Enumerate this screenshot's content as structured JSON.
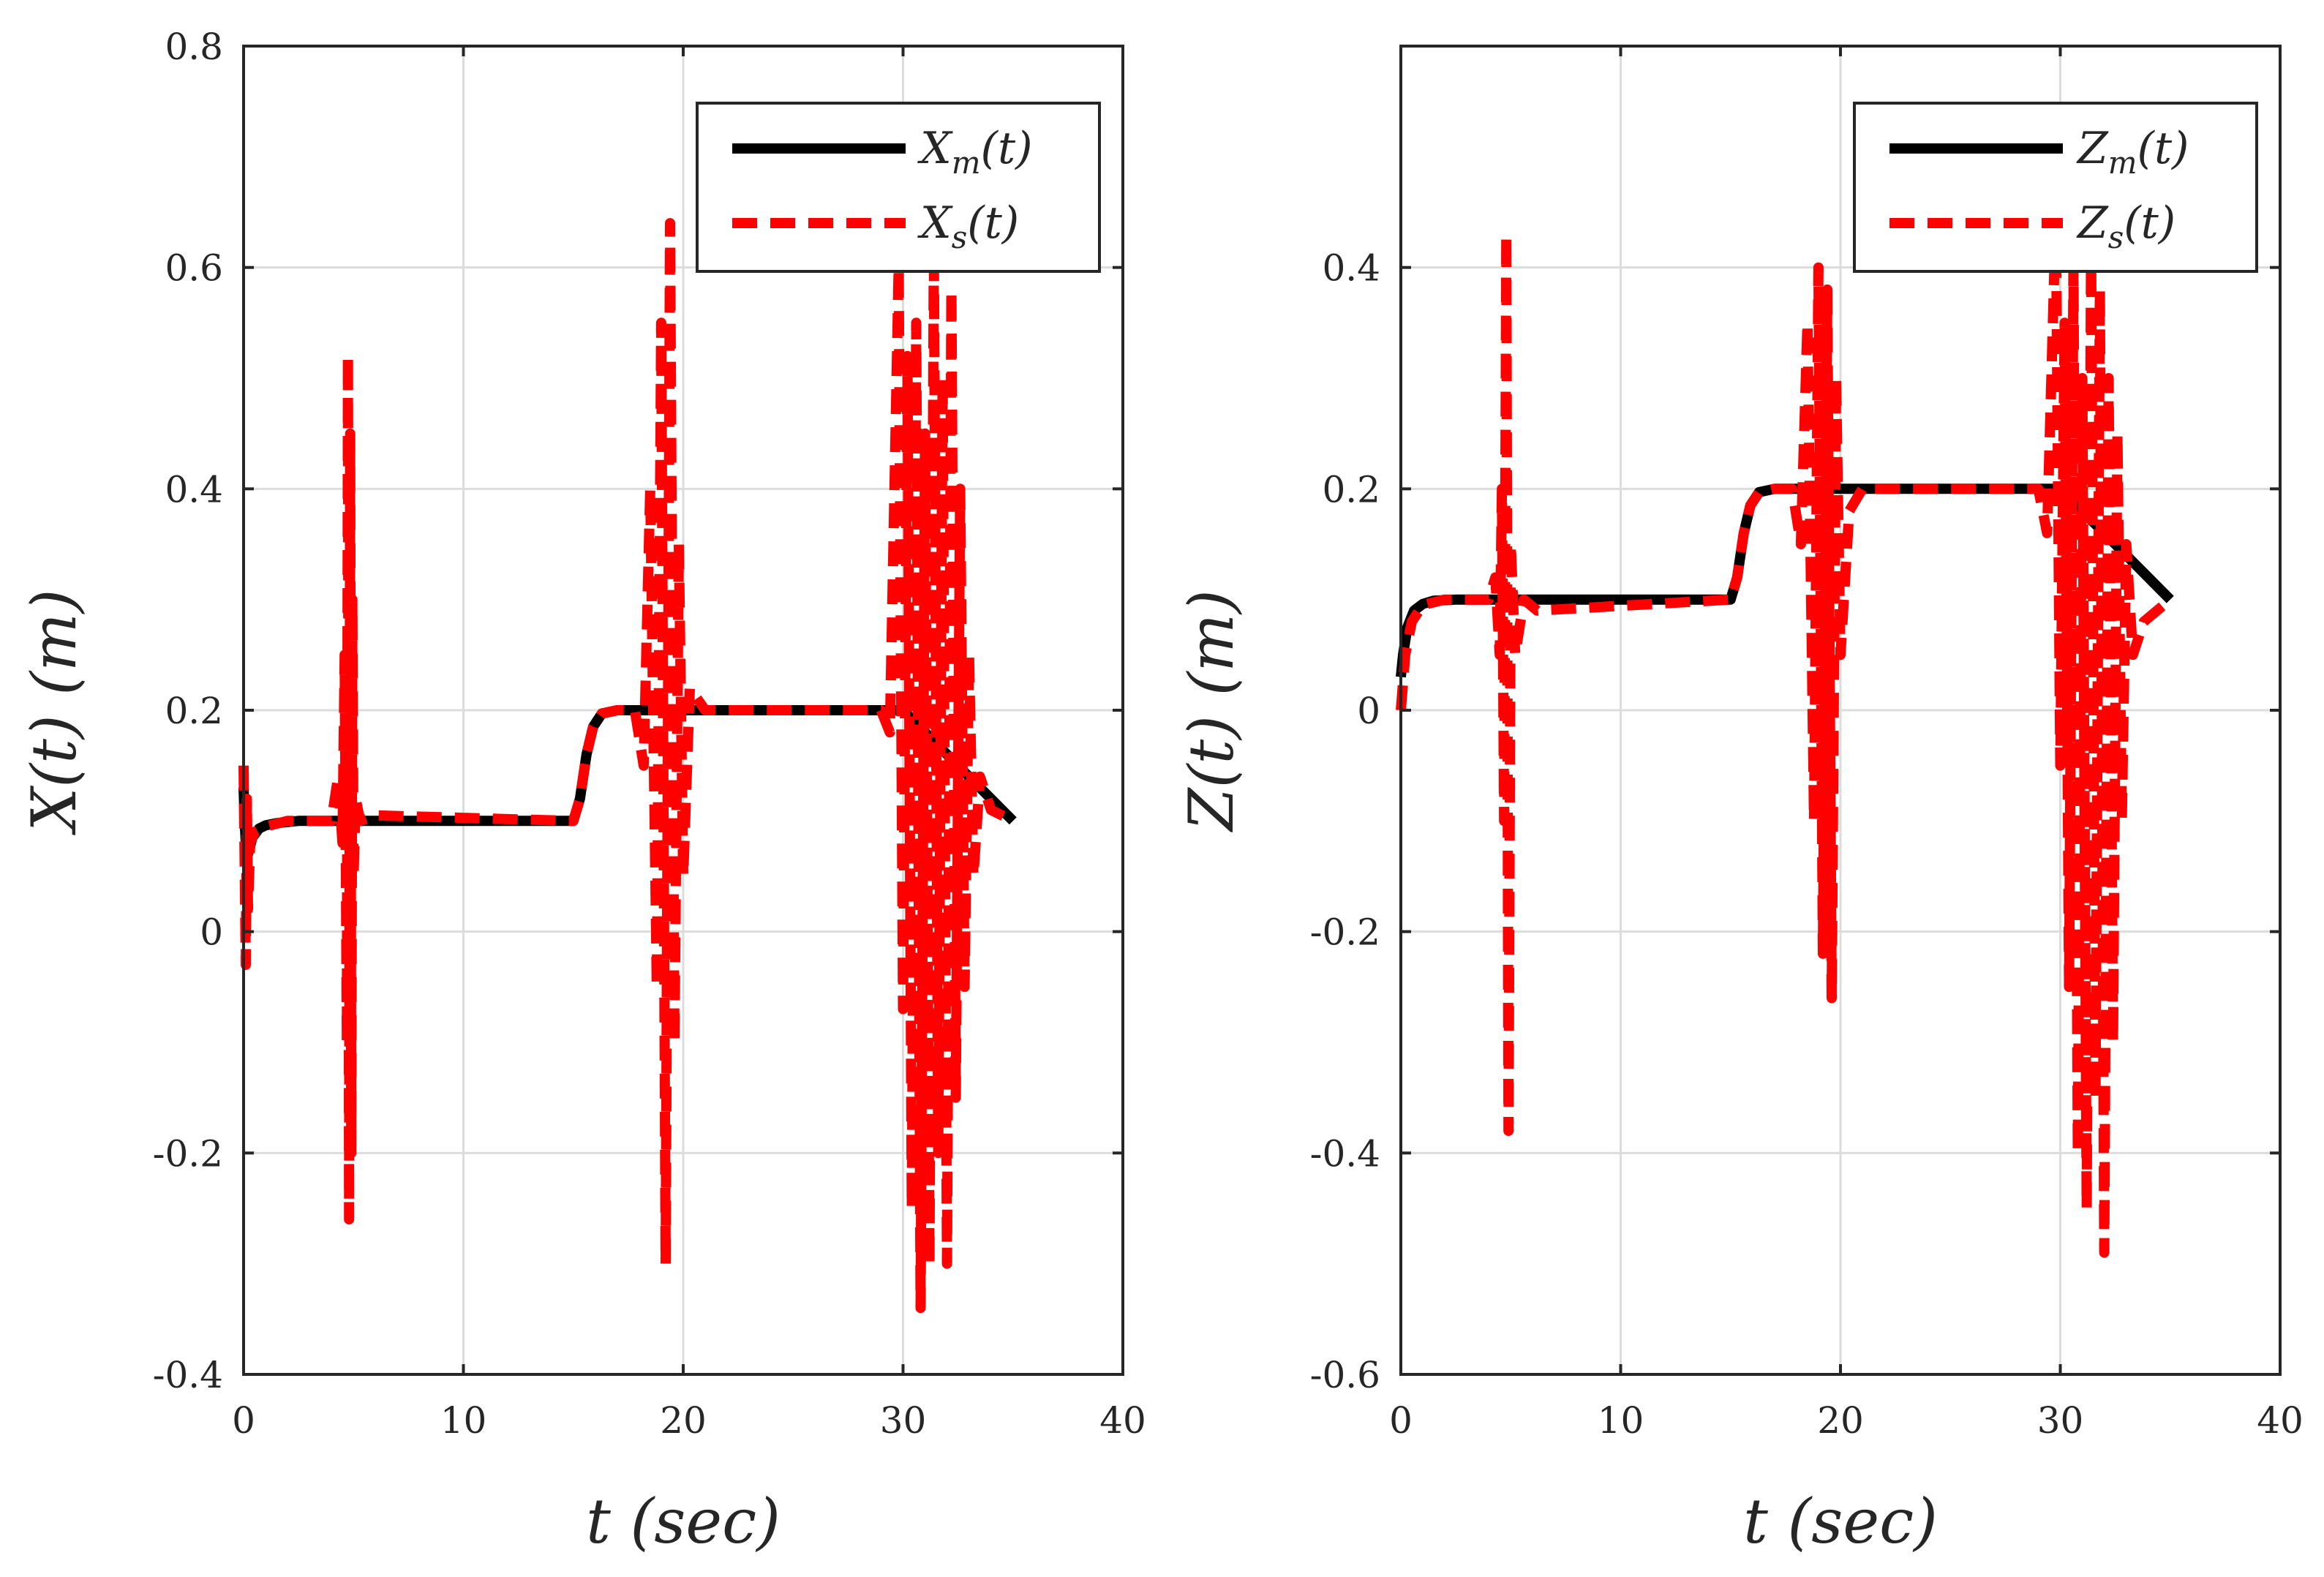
{
  "chart_data": [
    {
      "type": "line",
      "xlabel": "t (sec)",
      "ylabel": "X(t) (m)",
      "xlim": [
        0,
        40
      ],
      "ylim": [
        -0.4,
        0.8
      ],
      "xticks": [
        0,
        10,
        20,
        30,
        40
      ],
      "yticks": [
        -0.4,
        -0.2,
        0,
        0.2,
        0.4,
        0.6,
        0.8
      ],
      "xtick_labels": [
        "0",
        "10",
        "20",
        "30",
        "40"
      ],
      "ytick_labels": [
        "-0.4",
        "-0.2",
        "0",
        "0.2",
        "0.4",
        "0.6",
        "0.8"
      ],
      "grid": true,
      "legend_position": "top-right",
      "series": [
        {
          "name": "X_m(t)",
          "label": "X",
          "sub": "m",
          "suffix": "(t)",
          "style": "solid",
          "color": "#000000",
          "x": [
            0,
            0.05,
            0.1,
            0.2,
            0.4,
            0.7,
            1.0,
            1.5,
            2.5,
            15.0,
            15.3,
            15.6,
            15.9,
            16.3,
            17.0,
            30.0,
            35.0
          ],
          "y": [
            0.13,
            0.1,
            0.08,
            0.07,
            0.085,
            0.093,
            0.096,
            0.098,
            0.1,
            0.1,
            0.12,
            0.16,
            0.185,
            0.197,
            0.2,
            0.2,
            0.1
          ]
        },
        {
          "name": "X_s(t)",
          "label": "X",
          "sub": "s",
          "suffix": "(t)",
          "style": "dashed",
          "color": "#ff0000",
          "x": [
            0,
            0.05,
            0.1,
            0.15,
            0.2,
            0.3,
            0.5,
            1.0,
            2.0,
            4.0,
            4.3,
            4.5,
            4.6,
            4.7,
            4.75,
            4.8,
            4.85,
            4.9,
            4.95,
            5.0,
            5.1,
            5.3,
            6.0,
            15.0,
            15.3,
            15.6,
            15.9,
            16.3,
            17.0,
            17.8,
            18.2,
            18.5,
            18.8,
            19.0,
            19.2,
            19.4,
            19.6,
            19.8,
            20.0,
            20.3,
            21.0,
            29.0,
            29.4,
            29.8,
            30.0,
            30.2,
            30.4,
            30.6,
            30.8,
            31.0,
            31.2,
            31.4,
            31.6,
            31.8,
            32.0,
            32.2,
            32.4,
            32.6,
            32.8,
            33.0,
            33.2,
            33.5,
            34.0,
            35.0
          ],
          "y": [
            0.15,
            0.06,
            -0.03,
            0.12,
            0.02,
            0.08,
            0.09,
            0.095,
            0.1,
            0.1,
            0.14,
            0.08,
            0.25,
            -0.1,
            0.52,
            -0.26,
            0.45,
            -0.2,
            0.3,
            0.05,
            0.12,
            0.1,
            0.105,
            0.1,
            0.12,
            0.16,
            0.185,
            0.197,
            0.2,
            0.2,
            0.15,
            0.4,
            -0.05,
            0.55,
            -0.3,
            0.64,
            -0.1,
            0.35,
            0.05,
            0.22,
            0.2,
            0.2,
            0.18,
            0.6,
            -0.07,
            0.52,
            -0.25,
            0.55,
            -0.34,
            0.45,
            -0.3,
            0.62,
            -0.2,
            0.5,
            -0.3,
            0.58,
            -0.15,
            0.4,
            -0.05,
            0.25,
            0.05,
            0.14,
            0.11,
            0.1
          ]
        }
      ]
    },
    {
      "type": "line",
      "xlabel": "t (sec)",
      "ylabel": "Z(t) (m)",
      "xlim": [
        0,
        40
      ],
      "ylim": [
        -0.6,
        0.6
      ],
      "xticks": [
        0,
        10,
        20,
        30,
        40
      ],
      "yticks": [
        -0.6,
        -0.4,
        -0.2,
        0,
        0.2,
        0.4
      ],
      "xtick_labels": [
        "0",
        "10",
        "20",
        "30",
        "40"
      ],
      "ytick_labels": [
        "-0.6",
        "-0.4",
        "-0.2",
        "0",
        "0.2",
        "0.4"
      ],
      "grid": true,
      "legend_position": "top-right",
      "series": [
        {
          "name": "Z_m(t)",
          "label": "Z",
          "sub": "m",
          "suffix": "(t)",
          "style": "solid",
          "color": "#000000",
          "x": [
            0,
            0.1,
            0.3,
            0.6,
            1.0,
            1.5,
            2.5,
            15.0,
            15.3,
            15.6,
            15.9,
            16.3,
            17.0,
            30.0,
            35.0
          ],
          "y": [
            0.03,
            0.05,
            0.075,
            0.09,
            0.096,
            0.099,
            0.1,
            0.1,
            0.12,
            0.16,
            0.185,
            0.197,
            0.2,
            0.2,
            0.1
          ]
        },
        {
          "name": "Z_s(t)",
          "label": "Z",
          "sub": "s",
          "suffix": "(t)",
          "style": "dashed",
          "color": "#ff0000",
          "x": [
            0,
            0.2,
            0.5,
            1.0,
            2.0,
            4.0,
            4.3,
            4.5,
            4.6,
            4.7,
            4.8,
            4.9,
            5.0,
            5.2,
            5.6,
            6.2,
            15.0,
            15.3,
            15.6,
            15.9,
            16.3,
            17.0,
            17.8,
            18.2,
            18.5,
            18.8,
            19.0,
            19.2,
            19.4,
            19.6,
            19.8,
            20.0,
            20.4,
            21.0,
            29.0,
            29.4,
            29.8,
            30.0,
            30.2,
            30.4,
            30.6,
            30.8,
            31.0,
            31.2,
            31.4,
            31.6,
            31.8,
            32.0,
            32.2,
            32.4,
            32.6,
            32.8,
            33.0,
            33.3,
            33.8,
            35.0
          ],
          "y": [
            0,
            0.05,
            0.08,
            0.095,
            0.1,
            0.1,
            0.12,
            0.05,
            0.2,
            -0.1,
            0.43,
            -0.38,
            0.15,
            0.05,
            0.1,
            0.09,
            0.1,
            0.12,
            0.16,
            0.185,
            0.197,
            0.2,
            0.2,
            0.15,
            0.35,
            -0.1,
            0.4,
            -0.22,
            0.38,
            -0.26,
            0.3,
            0.05,
            0.18,
            0.2,
            0.2,
            0.16,
            0.45,
            -0.05,
            0.35,
            -0.25,
            0.4,
            -0.4,
            0.3,
            -0.45,
            0.42,
            -0.35,
            0.38,
            -0.49,
            0.3,
            -0.3,
            0.25,
            -0.1,
            0.15,
            0.05,
            0.08,
            0.1
          ]
        }
      ]
    }
  ]
}
